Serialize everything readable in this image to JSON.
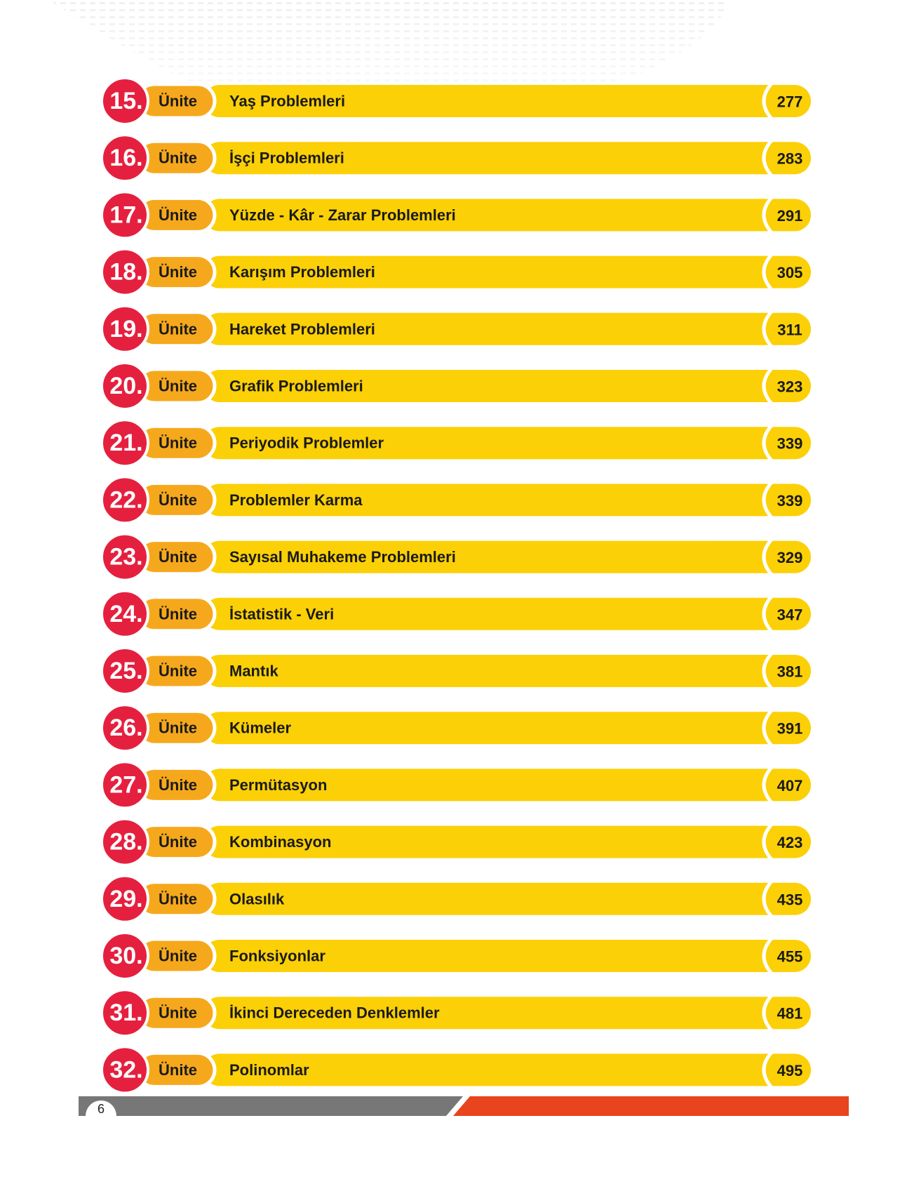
{
  "rows": [
    {
      "number": "15.",
      "label": "Ünite",
      "title": "Yaş Problemleri",
      "page": "277"
    },
    {
      "number": "16.",
      "label": "Ünite",
      "title": "İşçi Problemleri",
      "page": "283"
    },
    {
      "number": "17.",
      "label": "Ünite",
      "title": "Yüzde - Kâr - Zarar Problemleri",
      "page": "291"
    },
    {
      "number": "18.",
      "label": "Ünite",
      "title": "Karışım Problemleri",
      "page": "305"
    },
    {
      "number": "19.",
      "label": "Ünite",
      "title": "Hareket Problemleri",
      "page": "311"
    },
    {
      "number": "20.",
      "label": "Ünite",
      "title": "Grafik Problemleri",
      "page": "323"
    },
    {
      "number": "21.",
      "label": "Ünite",
      "title": "Periyodik Problemler",
      "page": "339"
    },
    {
      "number": "22.",
      "label": "Ünite",
      "title": "Problemler Karma",
      "page": "339"
    },
    {
      "number": "23.",
      "label": "Ünite",
      "title": "Sayısal Muhakeme Problemleri",
      "page": "329"
    },
    {
      "number": "24.",
      "label": "Ünite",
      "title": "İstatistik - Veri",
      "page": "347"
    },
    {
      "number": "25.",
      "label": "Ünite",
      "title": "Mantık",
      "page": "381"
    },
    {
      "number": "26.",
      "label": "Ünite",
      "title": "Kümeler",
      "page": "391"
    },
    {
      "number": "27.",
      "label": "Ünite",
      "title": "Permütasyon",
      "page": "407"
    },
    {
      "number": "28.",
      "label": "Ünite",
      "title": "Kombinasyon",
      "page": "423"
    },
    {
      "number": "29.",
      "label": "Ünite",
      "title": "Olasılık",
      "page": "435"
    },
    {
      "number": "30.",
      "label": "Ünite",
      "title": "Fonksiyonlar",
      "page": "455"
    },
    {
      "number": "31.",
      "label": "Ünite",
      "title": "İkinci Dereceden Denklemler",
      "page": "481"
    },
    {
      "number": "32.",
      "label": "Ünite",
      "title": "Polinomlar",
      "page": "495"
    }
  ],
  "footer": {
    "page_number": "6"
  }
}
